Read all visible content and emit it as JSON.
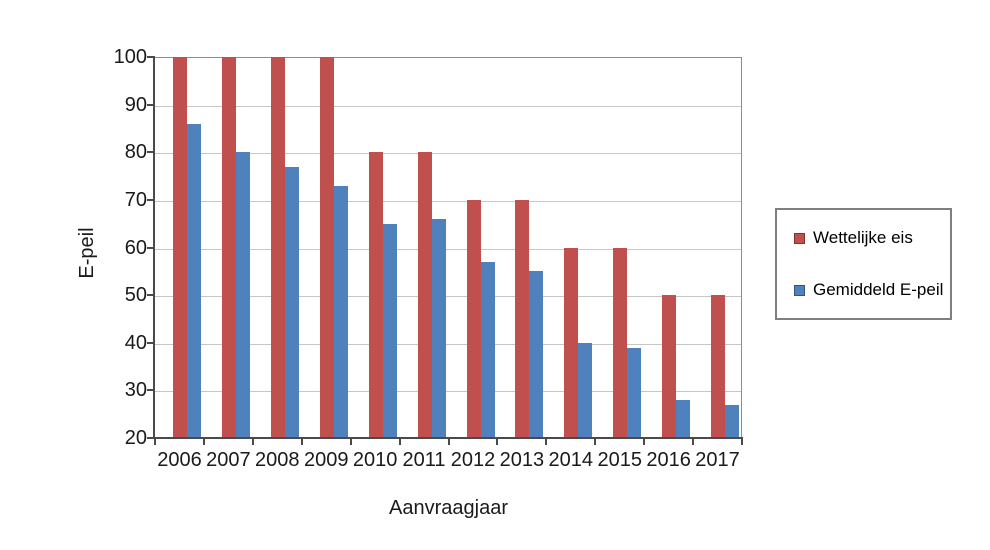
{
  "chart_data": {
    "type": "bar",
    "title": "",
    "categories": [
      "2006",
      "2007",
      "2008",
      "2009",
      "2010",
      "2011",
      "2012",
      "2013",
      "2014",
      "2015",
      "2016",
      "2017"
    ],
    "series": [
      {
        "name": "Wettelijke eis",
        "color": "#C0504D",
        "values": [
          100,
          100,
          100,
          100,
          80,
          80,
          70,
          70,
          60,
          60,
          50,
          50
        ]
      },
      {
        "name": "Gemiddeld E-peil",
        "color": "#4F81BD",
        "values": [
          86,
          80,
          77,
          73,
          65,
          66,
          57,
          55,
          40,
          39,
          28,
          27
        ]
      }
    ],
    "xlabel": "Aanvraagjaar",
    "ylabel": "E-peil",
    "ylim": [
      20,
      100
    ],
    "yticks": [
      20,
      30,
      40,
      50,
      60,
      70,
      80,
      90,
      100
    ],
    "grid": true,
    "legend_position": "right"
  }
}
